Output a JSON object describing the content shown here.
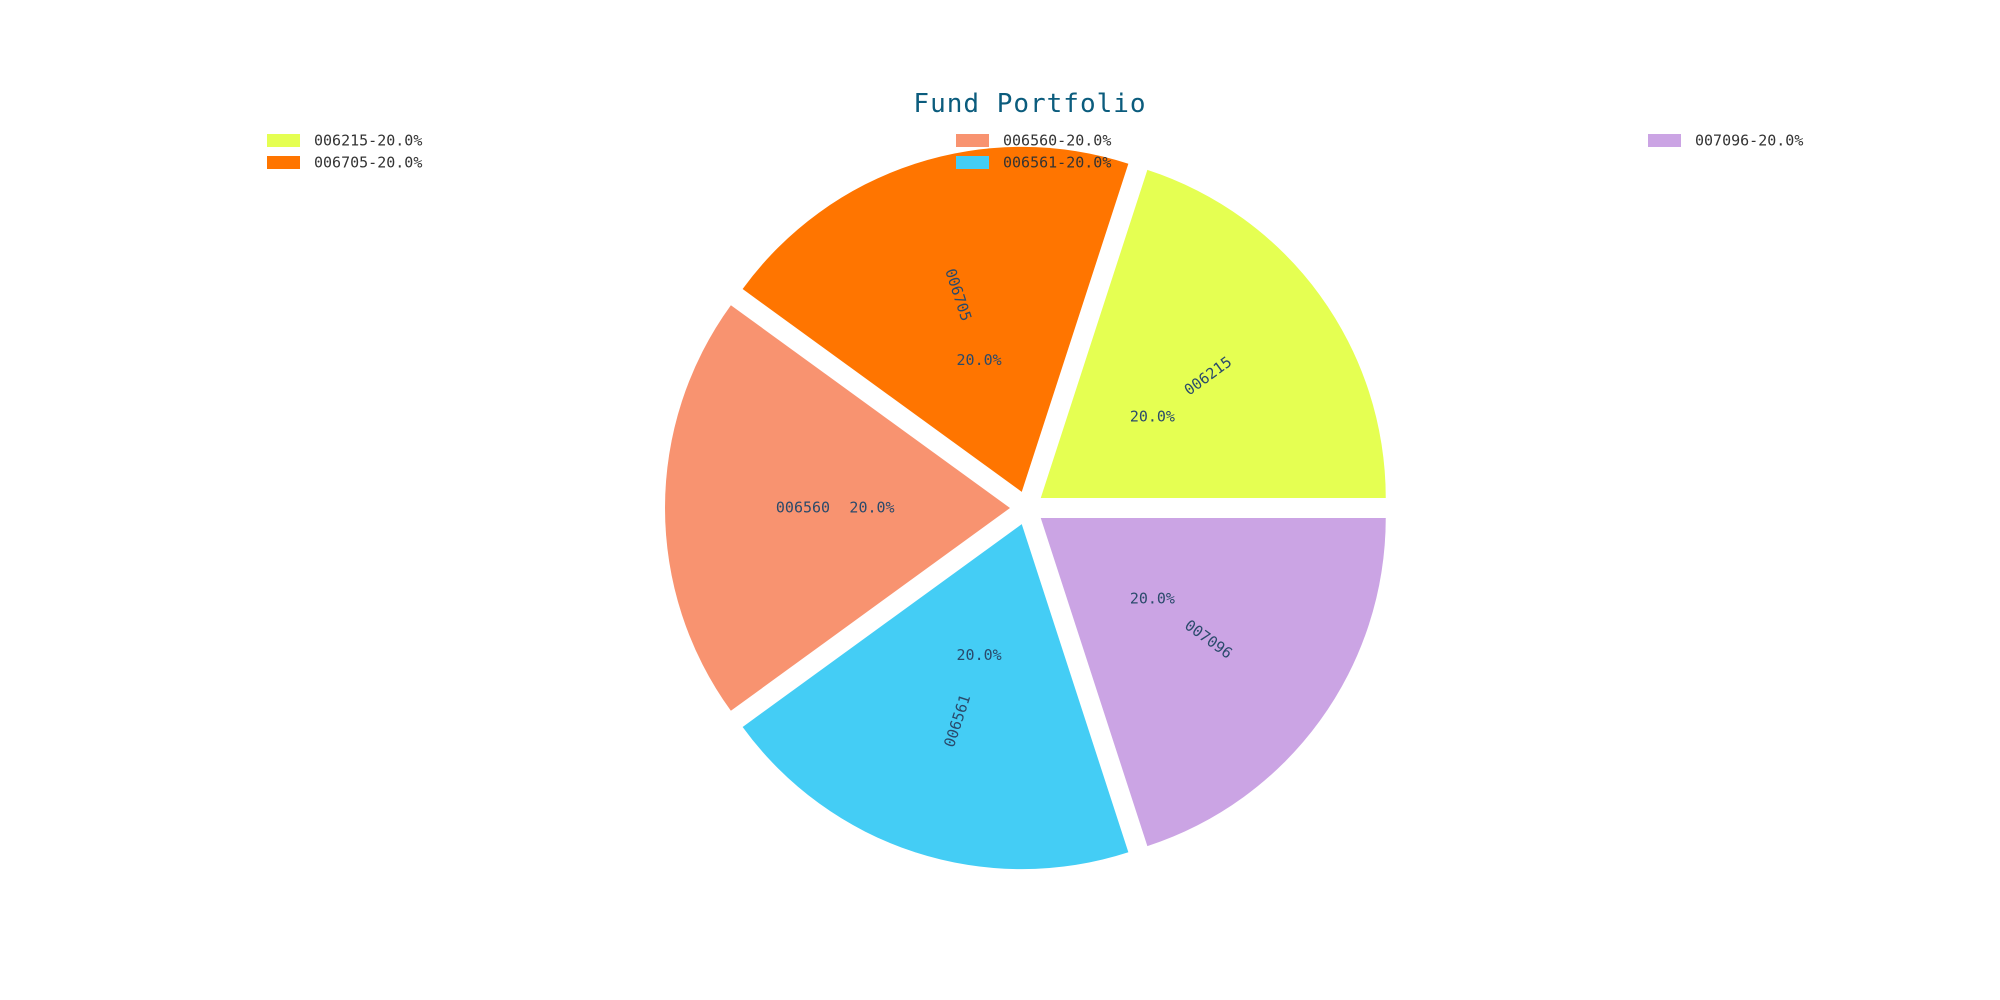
{
  "chart_data": {
    "type": "pie",
    "title": "Fund Portfolio",
    "start_angle_deg": 0,
    "direction": "counterclockwise",
    "legend_placement": "top",
    "slices": [
      {
        "label": "006215",
        "value": 20.0,
        "pct_label": "20.0%",
        "legend": "006215-20.0%",
        "color": "#e5ff52"
      },
      {
        "label": "006705",
        "value": 20.0,
        "pct_label": "20.0%",
        "legend": "006705-20.0%",
        "color": "#ff7500"
      },
      {
        "label": "006560",
        "value": 20.0,
        "pct_label": "20.0%",
        "legend": "006560-20.0%",
        "color": "#f89370"
      },
      {
        "label": "006561",
        "value": 20.0,
        "pct_label": "20.0%",
        "legend": "006561-20.0%",
        "color": "#44cdf5"
      },
      {
        "label": "007096",
        "value": 20.0,
        "pct_label": "20.0%",
        "legend": "007096-20.0%",
        "color": "#cba4e4"
      }
    ]
  }
}
